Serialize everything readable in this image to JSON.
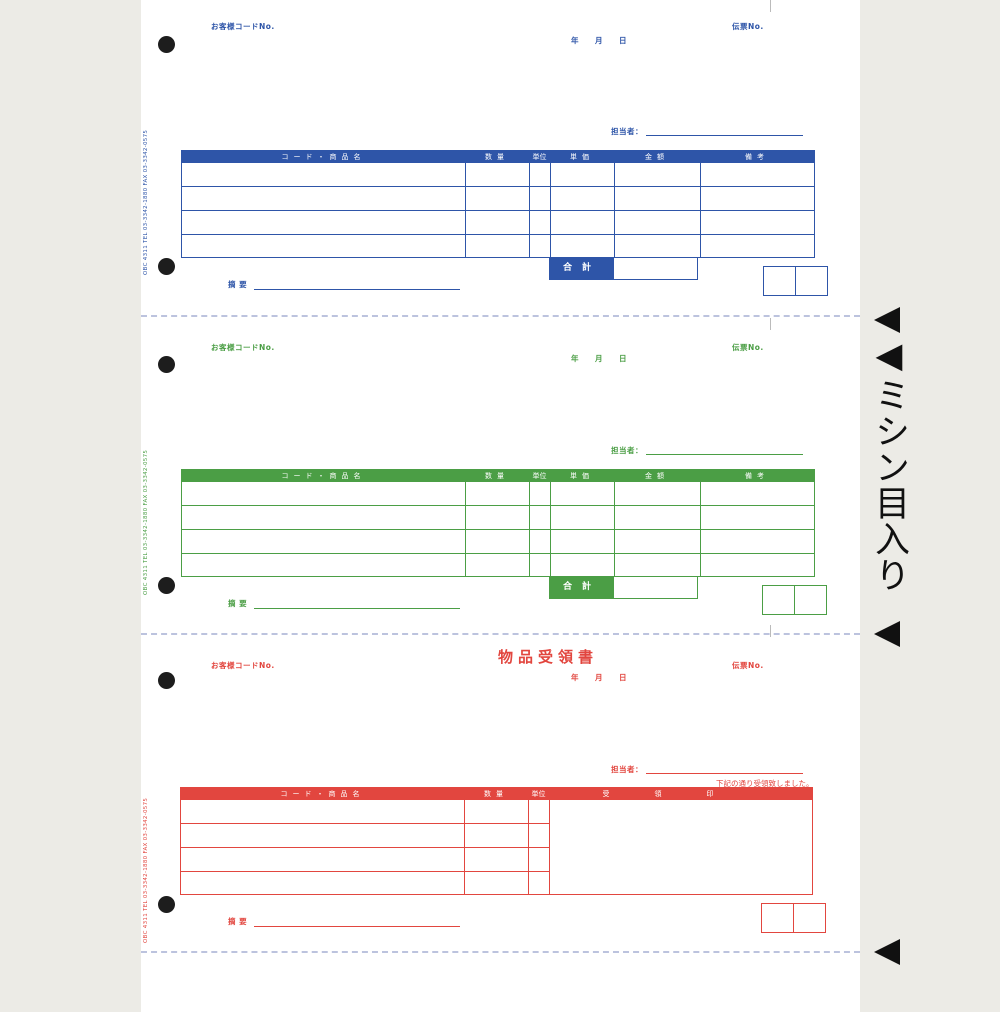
{
  "sheet": {
    "label_customer_code": "お客様コードNo.",
    "label_date": "年　　月　　日",
    "label_slip_no": "伝票No.",
    "label_staff": "担当者：",
    "label_memo": "摘 要",
    "label_total": "合計",
    "side_print": "OBC 4311 TEL 03-3342-1880 FAX 03-3342-0575",
    "columns": [
      "コード・商品名",
      "数量",
      "単位",
      "単価",
      "金額",
      "備考"
    ],
    "receipt_columns": [
      "コード・商品名",
      "数量",
      "単位",
      "受領印"
    ],
    "receipt_title": "物品受領書",
    "receipt_note": "下記の通り受領致しました。"
  },
  "annotation": {
    "perforation_label": "◀ミシン目入り"
  },
  "colors": {
    "blue": "#2e55a8",
    "green": "#4b9e45",
    "red": "#e2463f",
    "perforation": "#bcc3de"
  }
}
